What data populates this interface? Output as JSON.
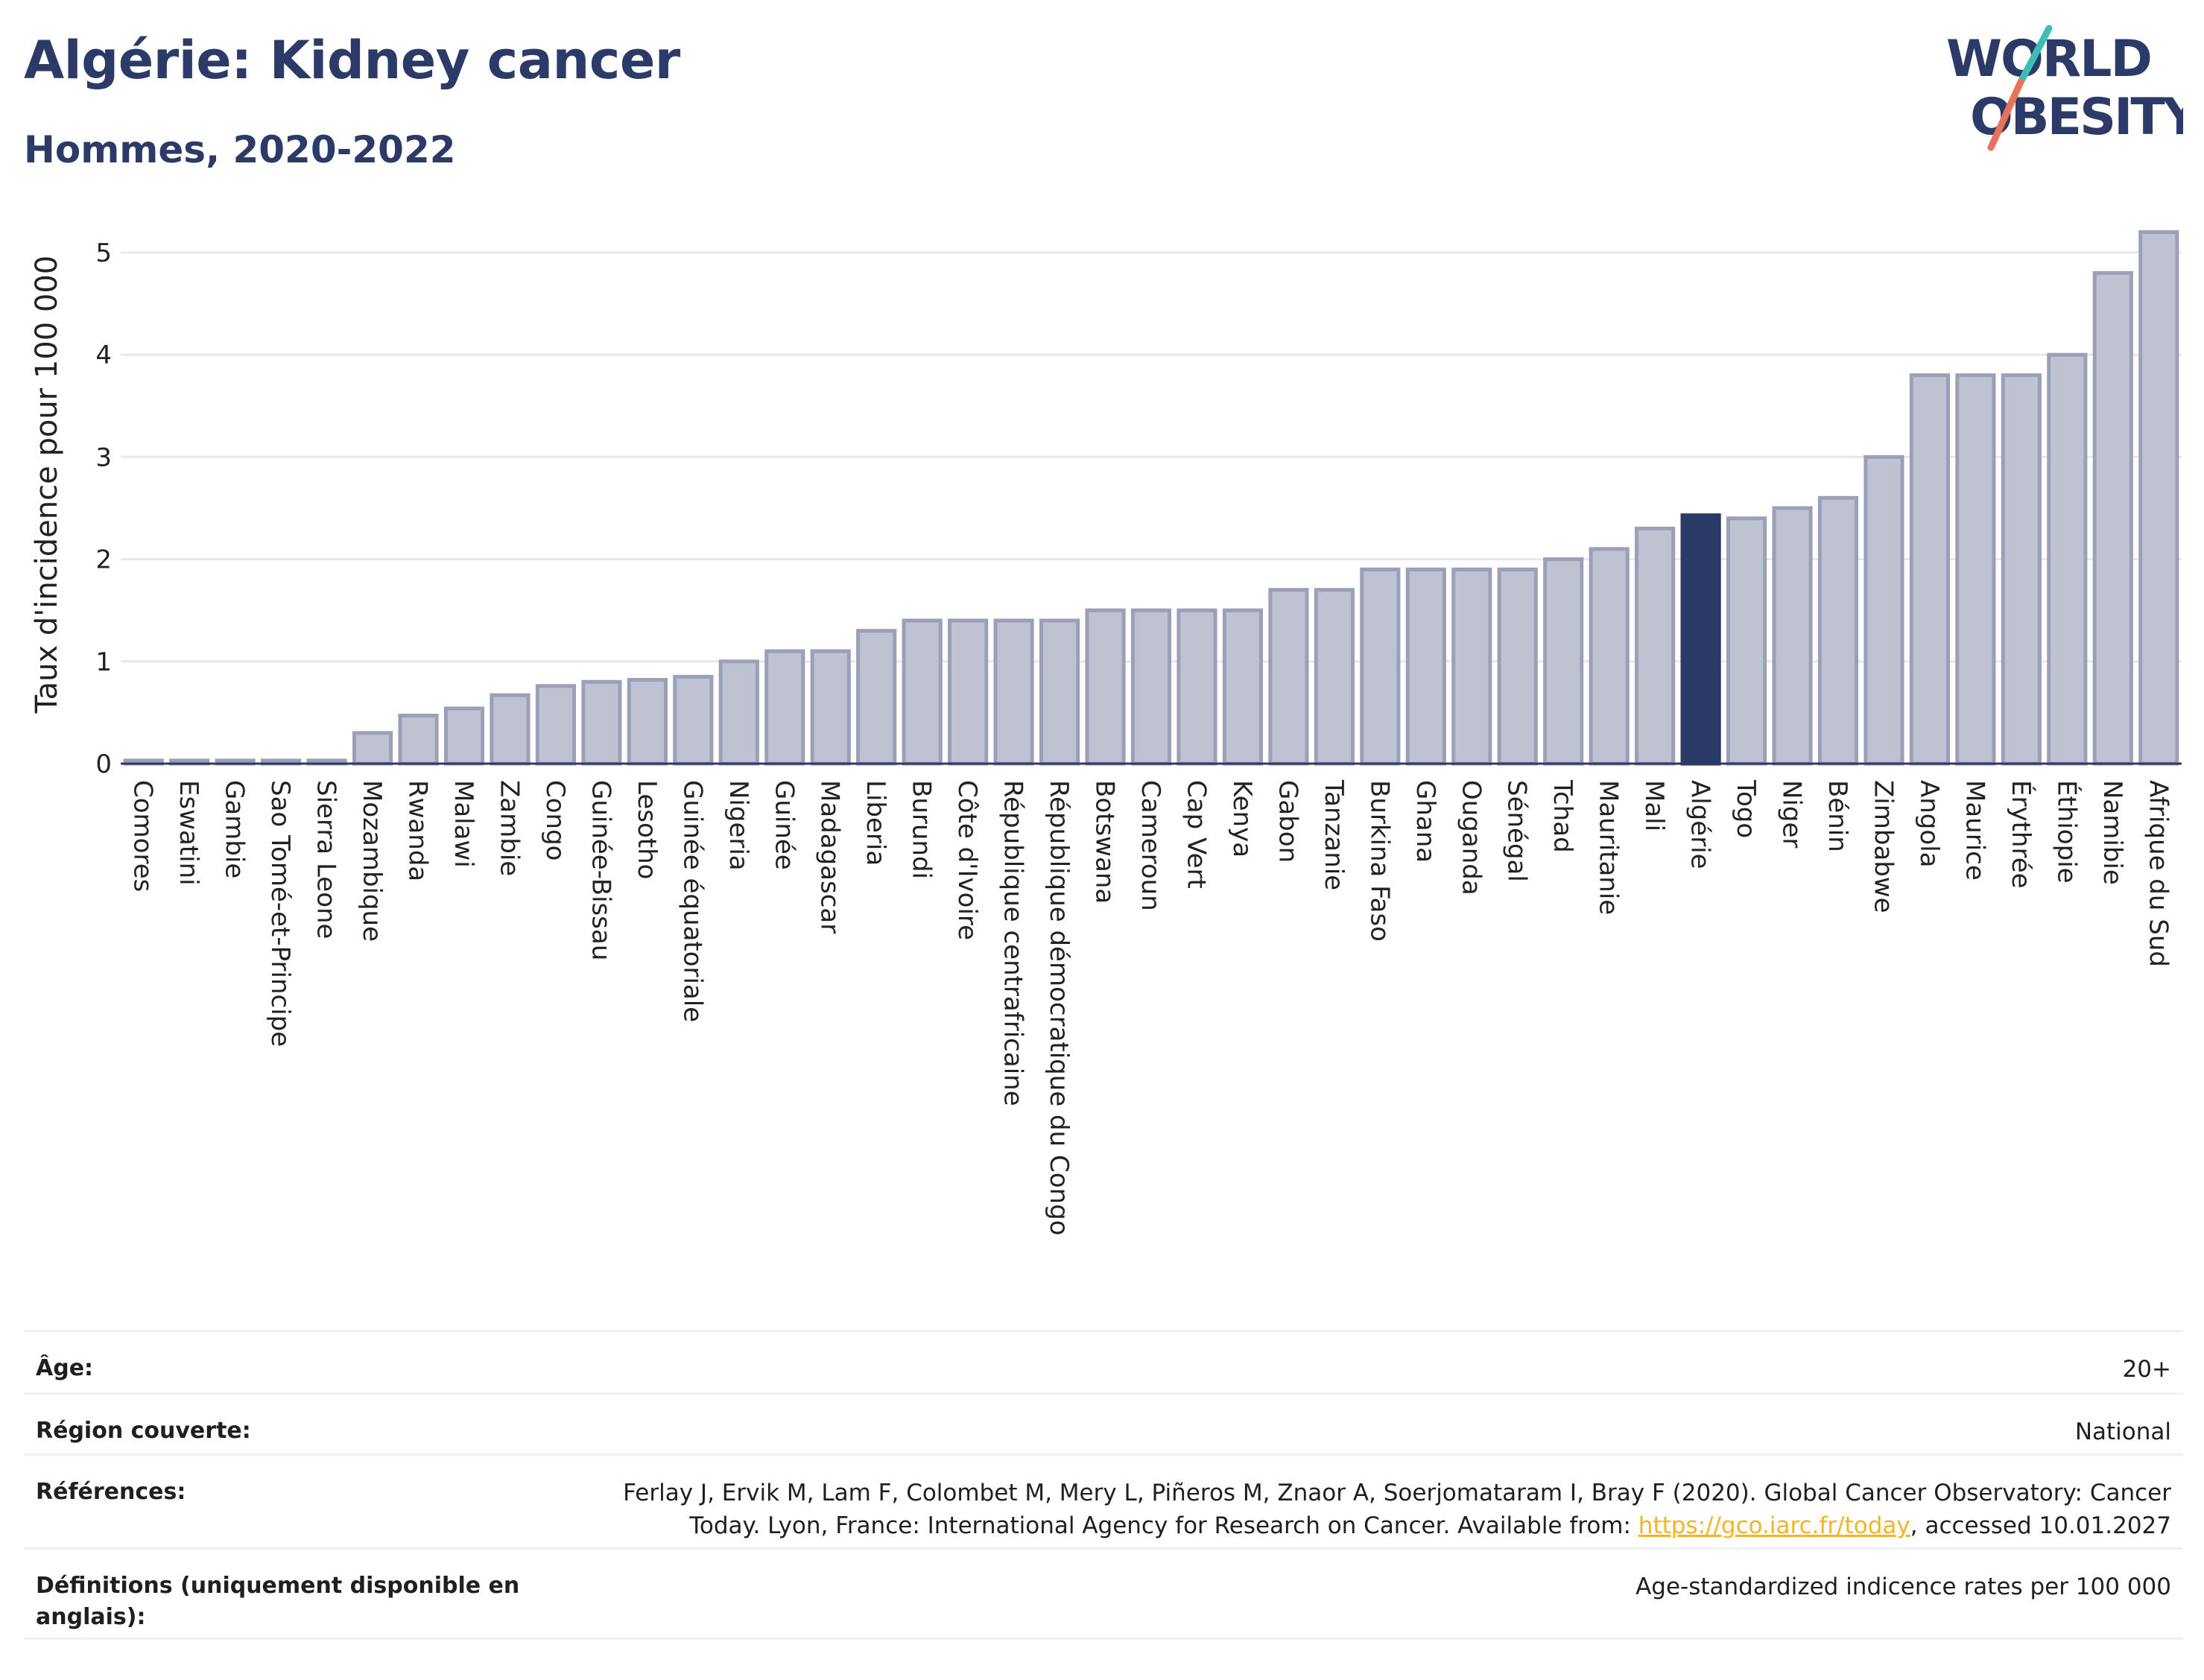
{
  "header": {
    "title": "Algérie: Kidney cancer",
    "subtitle": "Hommes, 2020-2022"
  },
  "logo": {
    "line1": "WORLD",
    "line2": "OBESITY",
    "colors": [
      "#2b3a67",
      "#e8735a",
      "#3bbfb5"
    ]
  },
  "chart_data": {
    "type": "bar",
    "ylabel": "Taux d'incidence pour 100 000",
    "ylim": [
      0,
      5.4
    ],
    "yticks": [
      0,
      1,
      2,
      3,
      4,
      5
    ],
    "grid": true,
    "highlight": "Algérie",
    "colors": {
      "bar": "#bfc3d1",
      "bar_border": "#9aa0b8",
      "highlight": "#2b3a67"
    },
    "categories": [
      "Comores",
      "Eswatini",
      "Gambie",
      "Sao Tomé-et-Principe",
      "Sierra Leone",
      "Mozambique",
      "Rwanda",
      "Malawi",
      "Zambie",
      "Congo",
      "Guinée-Bissau",
      "Lesotho",
      "Guinée équatoriale",
      "Nigeria",
      "Guinée",
      "Madagascar",
      "Liberia",
      "Burundi",
      "Côte d'Ivoire",
      "République centrafricaine",
      "République démocratique du Congo",
      "Botswana",
      "Cameroun",
      "Cap Vert",
      "Kenya",
      "Gabon",
      "Tanzanie",
      "Burkina Faso",
      "Ghana",
      "Ouganda",
      "Sénégal",
      "Tchad",
      "Mauritanie",
      "Mali",
      "Algérie",
      "Togo",
      "Niger",
      "Bénin",
      "Zimbabwe",
      "Angola",
      "Maurice",
      "Érythrée",
      "Éthiopie",
      "Namibie",
      "Afrique du Sud"
    ],
    "values": [
      0.03,
      0.03,
      0.03,
      0.03,
      0.03,
      0.3,
      0.47,
      0.54,
      0.67,
      0.76,
      0.8,
      0.82,
      0.85,
      1.0,
      1.1,
      1.1,
      1.3,
      1.4,
      1.4,
      1.4,
      1.4,
      1.5,
      1.5,
      1.5,
      1.5,
      1.7,
      1.7,
      1.9,
      1.9,
      1.9,
      1.9,
      2.0,
      2.1,
      2.3,
      2.43,
      2.4,
      2.5,
      2.6,
      3.0,
      3.8,
      3.8,
      3.8,
      4.0,
      4.8,
      5.2
    ]
  },
  "info": {
    "age_label": "Âge:",
    "age_value": "20+",
    "region_label": "Région couverte:",
    "region_value": "National",
    "ref_label": "Références:",
    "ref_text_1": "Ferlay J, Ervik M, Lam F, Colombet M, Mery L, Piñeros M, Znaor A, Soerjomataram I, Bray F (2020). Global Cancer Observatory: Cancer",
    "ref_text_2": "Today. Lyon, France: International Agency for Research on Cancer. Available from: ",
    "ref_link": "https://gco.iarc.fr/today",
    "ref_text_3": ", accessed 10.01.2027",
    "def_label": "Définitions (uniquement disponible en anglais):",
    "def_value": "Age-standardized indicence rates per 100 000"
  }
}
